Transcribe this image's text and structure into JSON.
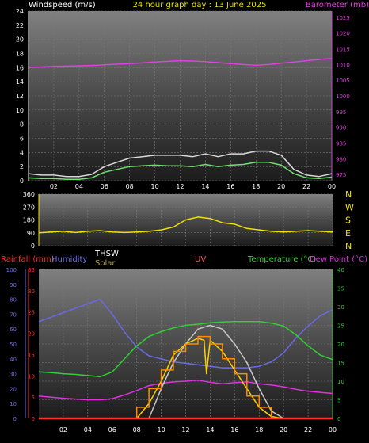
{
  "header": {
    "left_label": "Windspeed (m/s)",
    "center_label": "24 hour graph day : 13 June 2025",
    "right_label": "Barometer (mb)"
  },
  "colors": {
    "background": "#000000",
    "grid": "#7a7a7a",
    "wind_axis": "#ffffff",
    "barometer": "#e040e0",
    "gust": "#d8d8d8",
    "avg_wind": "#70e070",
    "direction": "#f0e000",
    "rain": "#ff3030",
    "humidity": "#6a6ae8",
    "temperature": "#30d030",
    "dew_point": "#e030e0",
    "solar": "#ffd000",
    "uv": "#ff8c00",
    "thsw": "#c8c8c8"
  },
  "x_ticks": [
    "02",
    "04",
    "06",
    "08",
    "10",
    "12",
    "14",
    "16",
    "18",
    "20",
    "22",
    "00"
  ],
  "direction_labels": [
    "N",
    "W",
    "S",
    "E",
    "N"
  ],
  "bottom_header": {
    "rainfall": "Rainfall (mm)",
    "humidity": "Humidity",
    "thsw": "THSW",
    "solar": "Solar",
    "uv": "UV",
    "temperature": "Temperature (°C)",
    "dew_point": "Dew Point (°C)"
  },
  "chart_data": [
    {
      "type": "line",
      "panel": "wind-barometer",
      "x_unit": "hour",
      "xlim": [
        0,
        24
      ],
      "ylim_left": [
        0,
        24
      ],
      "ylim_right": [
        973,
        1027
      ],
      "left_ticks": [
        0,
        2,
        4,
        6,
        8,
        10,
        12,
        14,
        16,
        18,
        20,
        22,
        24
      ],
      "right_ticks": [
        975,
        980,
        985,
        990,
        995,
        1000,
        1005,
        1010,
        1015,
        1020,
        1025
      ],
      "series": [
        {
          "name": "Barometer",
          "axis": "right",
          "x": [
            0,
            1,
            2,
            3,
            4,
            5,
            6,
            7,
            8,
            9,
            10,
            11,
            12,
            13,
            14,
            15,
            16,
            17,
            18,
            19,
            20,
            21,
            22,
            23,
            24
          ],
          "y": [
            1009,
            1009.2,
            1009.4,
            1009.5,
            1009.6,
            1009.7,
            1009.9,
            1010.1,
            1010.3,
            1010.5,
            1010.8,
            1011,
            1011.2,
            1011.1,
            1010.9,
            1010.6,
            1010.3,
            1010,
            1009.8,
            1010,
            1010.4,
            1010.8,
            1011.2,
            1011.6,
            1011.9
          ]
        },
        {
          "name": "Gust",
          "axis": "left",
          "x": [
            0,
            1,
            2,
            3,
            4,
            5,
            6,
            7,
            8,
            9,
            10,
            11,
            12,
            13,
            14,
            15,
            16,
            17,
            18,
            19,
            20,
            21,
            22,
            23,
            24
          ],
          "y": [
            1,
            0.8,
            0.8,
            0.6,
            0.6,
            0.9,
            2,
            2.6,
            3.2,
            3.4,
            3.6,
            3.6,
            3.6,
            3.4,
            3.8,
            3.4,
            3.8,
            3.8,
            4.2,
            4.2,
            3.6,
            1.6,
            0.8,
            0.6,
            1
          ]
        },
        {
          "name": "Wind Speed",
          "axis": "left",
          "x": [
            0,
            1,
            2,
            3,
            4,
            5,
            6,
            7,
            8,
            9,
            10,
            11,
            12,
            13,
            14,
            15,
            16,
            17,
            18,
            19,
            20,
            21,
            22,
            23,
            24
          ],
          "y": [
            0.4,
            0.3,
            0.3,
            0.2,
            0.2,
            0.4,
            1.2,
            1.6,
            2,
            2.1,
            2.2,
            2.1,
            2.1,
            2,
            2.3,
            2,
            2.2,
            2.3,
            2.6,
            2.6,
            2.2,
            1,
            0.4,
            0.3,
            0.5
          ]
        }
      ]
    },
    {
      "type": "line",
      "panel": "wind-direction",
      "x_unit": "hour",
      "xlim": [
        0,
        24
      ],
      "ylim": [
        0,
        360
      ],
      "ticks": [
        0,
        90,
        180,
        270,
        360
      ],
      "series": [
        {
          "name": "Wind Direction",
          "x": [
            0,
            1,
            2,
            3,
            4,
            5,
            6,
            7,
            8,
            9,
            10,
            11,
            12,
            13,
            14,
            15,
            16,
            17,
            18,
            19,
            20,
            21,
            22,
            23,
            24
          ],
          "y": [
            90,
            95,
            100,
            92,
            100,
            105,
            95,
            92,
            95,
            100,
            110,
            130,
            180,
            200,
            190,
            160,
            150,
            120,
            110,
            100,
            95,
            100,
            105,
            100,
            95
          ]
        }
      ]
    },
    {
      "type": "line",
      "panel": "temperature-humidity",
      "x_unit": "hour",
      "xlim": [
        0,
        24
      ],
      "humidity_ticks": [
        0,
        10,
        20,
        30,
        40,
        50,
        60,
        70,
        80,
        90,
        100
      ],
      "rain_ticks": [
        0,
        5,
        10,
        15,
        20,
        25,
        30,
        35
      ],
      "temperature_ticks": [
        0,
        5,
        10,
        15,
        20,
        25,
        30,
        35,
        40
      ],
      "series": [
        {
          "name": "Humidity",
          "axis": "humidity",
          "x": [
            0,
            1,
            2,
            3,
            4,
            5,
            6,
            7,
            8,
            9,
            10,
            11,
            12,
            13,
            14,
            15,
            16,
            17,
            18,
            19,
            20,
            21,
            22,
            23,
            24
          ],
          "y": [
            65,
            68,
            71,
            74,
            77,
            80,
            70,
            58,
            48,
            42,
            40,
            38,
            37,
            36,
            35,
            34,
            34,
            34,
            35,
            38,
            44,
            54,
            62,
            69,
            73
          ]
        },
        {
          "name": "Temperature (°C)",
          "axis": "temperature",
          "x": [
            0,
            1,
            2,
            3,
            4,
            5,
            6,
            7,
            8,
            9,
            10,
            11,
            12,
            13,
            14,
            15,
            16,
            17,
            18,
            19,
            20,
            21,
            22,
            23,
            24
          ],
          "y": [
            12.5,
            12.3,
            12,
            11.8,
            11.5,
            11.2,
            12.5,
            16,
            19.5,
            22,
            23.3,
            24.3,
            25,
            25.3,
            25.7,
            25.9,
            26,
            26,
            26,
            25.6,
            24.8,
            22.5,
            19.5,
            17,
            15.8
          ]
        },
        {
          "name": "Dew Point (°C)",
          "axis": "temperature",
          "x": [
            0,
            1,
            2,
            3,
            4,
            5,
            6,
            7,
            8,
            9,
            10,
            11,
            12,
            13,
            14,
            15,
            16,
            17,
            18,
            19,
            20,
            21,
            22,
            23,
            24
          ],
          "y": [
            6,
            5.7,
            5.4,
            5.2,
            5,
            5,
            5.3,
            6.3,
            7.5,
            8.8,
            9.4,
            9.8,
            10,
            10.3,
            9.7,
            9.3,
            9.6,
            9.8,
            9.3,
            9,
            8.5,
            7.8,
            7.3,
            7,
            6.7
          ]
        },
        {
          "name": "THSW",
          "axis": "temperature",
          "x": [
            0,
            2,
            4,
            5,
            6,
            7,
            8,
            9,
            10,
            11,
            12,
            13,
            14,
            15,
            16,
            17,
            18,
            19,
            20,
            21,
            22,
            24
          ],
          "y": [
            0,
            0,
            0,
            0,
            0,
            0,
            0,
            0,
            8,
            15,
            20,
            24,
            25,
            24,
            20,
            15,
            8,
            2,
            0,
            0,
            0,
            0
          ]
        },
        {
          "name": "Solar",
          "axis": "temperature",
          "x": [
            0,
            2,
            4,
            5,
            6,
            7,
            8,
            9,
            10,
            11,
            12,
            13,
            13.5,
            13.7,
            14,
            15,
            16,
            17,
            18,
            19,
            20,
            21,
            22,
            24
          ],
          "y": [
            0,
            0,
            0,
            0,
            0,
            0,
            0,
            4,
            10,
            17,
            20,
            21.5,
            21,
            12,
            21,
            18,
            13,
            8,
            3,
            0.5,
            0,
            0,
            0,
            0
          ]
        },
        {
          "name": "UV",
          "axis": "temperature",
          "x": [
            0,
            2,
            4,
            5,
            6,
            7,
            8,
            9,
            10,
            11,
            12,
            13,
            14,
            15,
            16,
            17,
            18,
            19,
            20,
            22,
            24
          ],
          "y": [
            0,
            0,
            0,
            0,
            0,
            0,
            3,
            8,
            13,
            18,
            20,
            22,
            20,
            16,
            12,
            6,
            3,
            0,
            0,
            0,
            0
          ]
        },
        {
          "name": "Rainfall (mm)",
          "axis": "rain",
          "x": [
            0,
            24
          ],
          "y": [
            0,
            0
          ]
        }
      ]
    }
  ]
}
